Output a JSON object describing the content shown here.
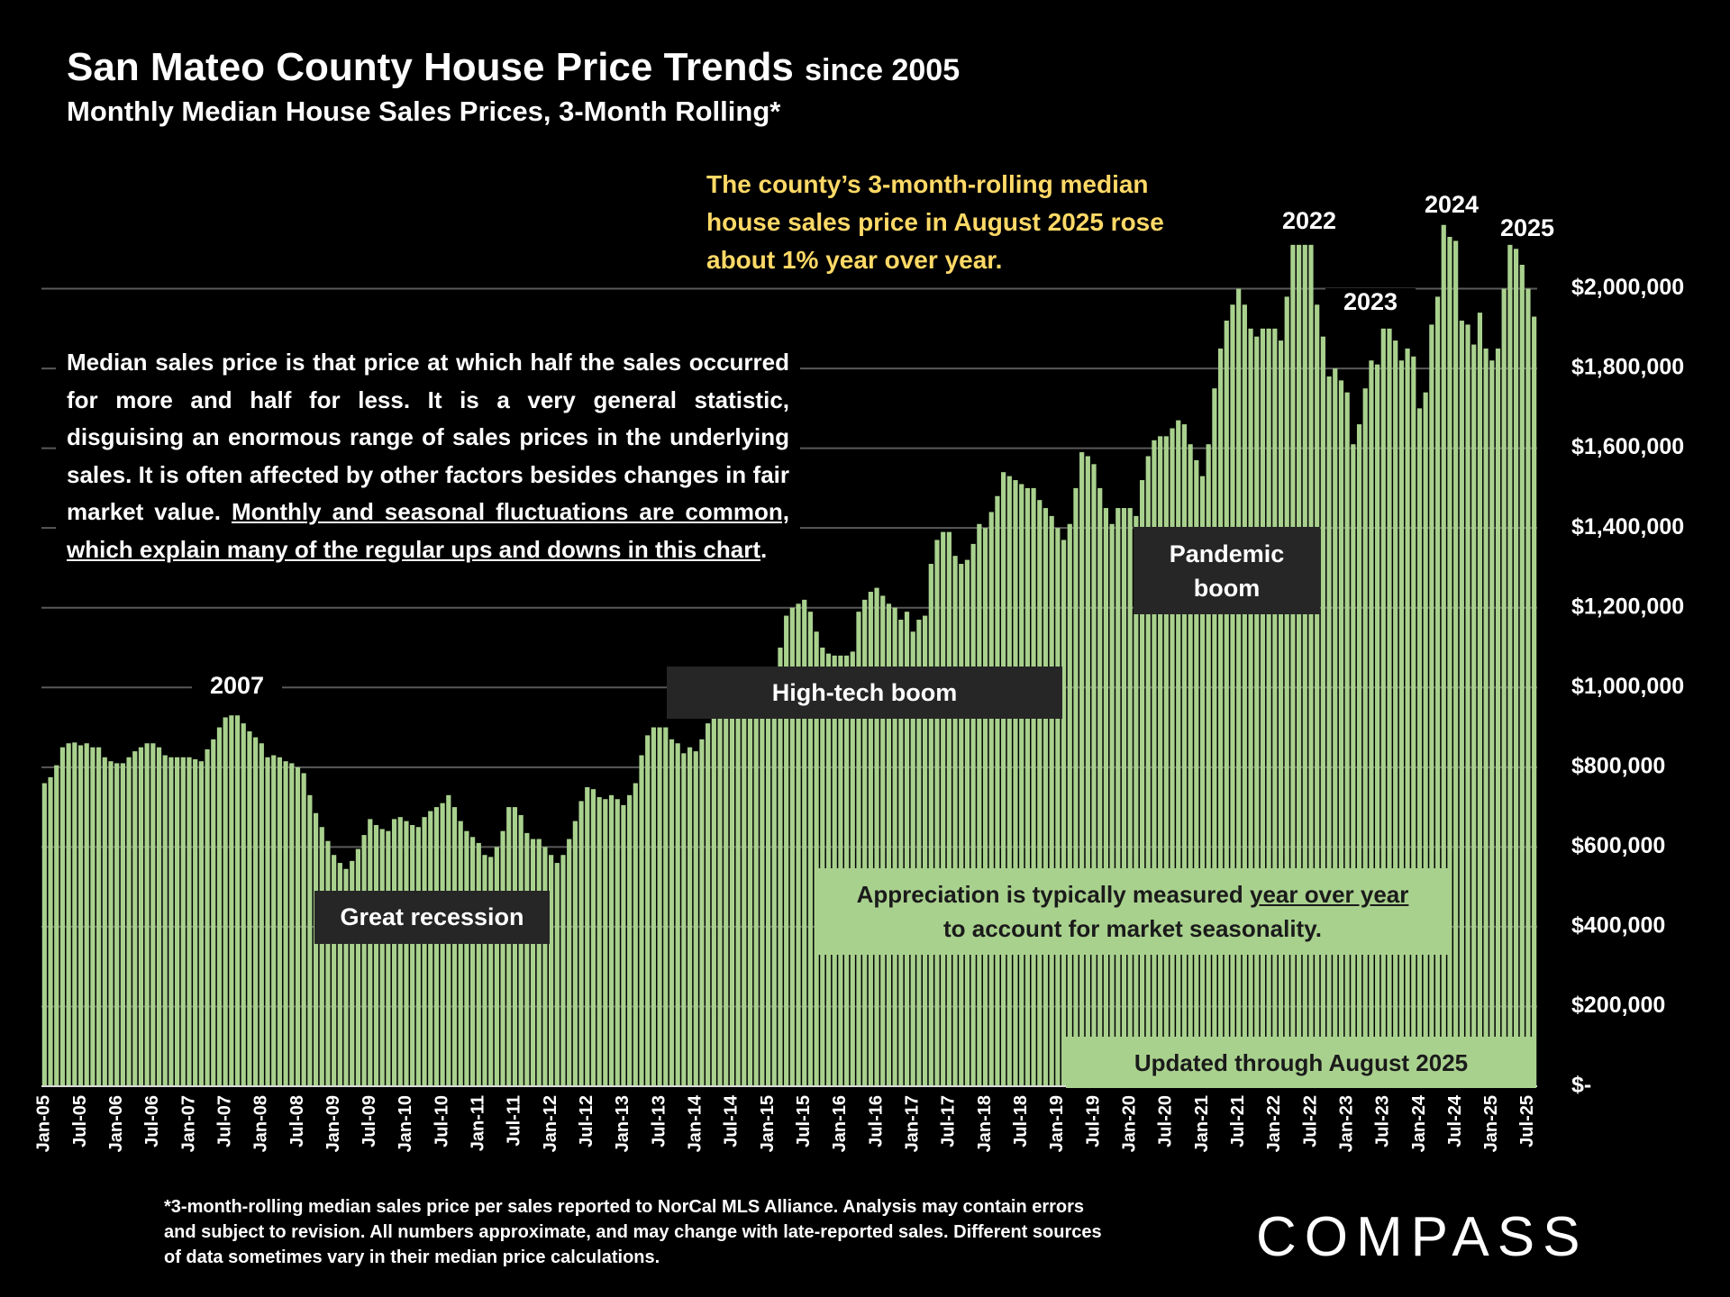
{
  "chart_data": {
    "type": "bar",
    "title": "San Mateo County House Price Trends",
    "title_note": "since 2005",
    "subtitle": "Monthly Median House Sales Prices, 3-Month Rolling*",
    "callout": "The county’s 3-month-rolling median house sales price in August 2025 rose about 1% year over year.",
    "explainer": {
      "text": "Median sales price is that price at which half the sales occurred for more and half for less. It is a very general statistic, disguising an enormous range of sales prices in the underlying sales. It is often affected by other factors besides changes in fair market value.",
      "underlined": "Monthly and seasonal fluctuations are common, which explain many of the regular ups and downs in this chart",
      "end": "."
    },
    "annotations": [
      "2007",
      "2022",
      "2023",
      "2024",
      "2025",
      "Great recession",
      "High-tech boom",
      "Pandemic boom"
    ],
    "seasonality_note": {
      "before": "Appreciation is typically measured",
      "underlined": "year over year",
      "after": "to account for market seasonality."
    },
    "update_note": "Updated through August 2025",
    "footnote": "*3-month-rolling median sales price per sales reported to NorCal MLS Alliance. Analysis may contain errors and subject to revision. All numbers approximate, and may change with late-reported sales. Different sources of data sometimes vary in their median price calculations.",
    "logo": "COMPASS",
    "color": "#a9d18e",
    "grid": true,
    "ylim": [
      0,
      2200000
    ],
    "yticks": [
      {
        "value": 0,
        "label": "$-"
      },
      {
        "value": 200000,
        "label": "$200,000"
      },
      {
        "value": 400000,
        "label": "$400,000"
      },
      {
        "value": 600000,
        "label": "$600,000"
      },
      {
        "value": 800000,
        "label": "$800,000"
      },
      {
        "value": 1000000,
        "label": "$1,000,000"
      },
      {
        "value": 1200000,
        "label": "$1,200,000"
      },
      {
        "value": 1400000,
        "label": "$1,400,000"
      },
      {
        "value": 1600000,
        "label": "$1,600,000"
      },
      {
        "value": 1800000,
        "label": "$1,800,000"
      },
      {
        "value": 2000000,
        "label": "$2,000,000"
      }
    ],
    "categories": [
      "Jan-05",
      null,
      null,
      null,
      null,
      null,
      "Jul-05",
      null,
      null,
      null,
      null,
      null,
      "Jan-06",
      null,
      null,
      null,
      null,
      null,
      "Jul-06",
      null,
      null,
      null,
      null,
      null,
      "Jan-07",
      null,
      null,
      null,
      null,
      null,
      "Jul-07",
      null,
      null,
      null,
      null,
      null,
      "Jan-08",
      null,
      null,
      null,
      null,
      null,
      "Jul-08",
      null,
      null,
      null,
      null,
      null,
      "Jan-09",
      null,
      null,
      null,
      null,
      null,
      "Jul-09",
      null,
      null,
      null,
      null,
      null,
      "Jan-10",
      null,
      null,
      null,
      null,
      null,
      "Jul-10",
      null,
      null,
      null,
      null,
      null,
      "Jan-11",
      null,
      null,
      null,
      null,
      null,
      "Jul-11",
      null,
      null,
      null,
      null,
      null,
      "Jan-12",
      null,
      null,
      null,
      null,
      null,
      "Jul-12",
      null,
      null,
      null,
      null,
      null,
      "Jan-13",
      null,
      null,
      null,
      null,
      null,
      "Jul-13",
      null,
      null,
      null,
      null,
      null,
      "Jan-14",
      null,
      null,
      null,
      null,
      null,
      "Jul-14",
      null,
      null,
      null,
      null,
      null,
      "Jan-15",
      null,
      null,
      null,
      null,
      null,
      "Jul-15",
      null,
      null,
      null,
      null,
      null,
      "Jan-16",
      null,
      null,
      null,
      null,
      null,
      "Jul-16",
      null,
      null,
      null,
      null,
      null,
      "Jan-17",
      null,
      null,
      null,
      null,
      null,
      "Jul-17",
      null,
      null,
      null,
      null,
      null,
      "Jan-18",
      null,
      null,
      null,
      null,
      null,
      "Jul-18",
      null,
      null,
      null,
      null,
      null,
      "Jan-19",
      null,
      null,
      null,
      null,
      null,
      "Jul-19",
      null,
      null,
      null,
      null,
      null,
      "Jan-20",
      null,
      null,
      null,
      null,
      null,
      "Jul-20",
      null,
      null,
      null,
      null,
      null,
      "Jan-21",
      null,
      null,
      null,
      null,
      null,
      "Jul-21",
      null,
      null,
      null,
      null,
      null,
      "Jan-22",
      null,
      null,
      null,
      null,
      null,
      "Jul-22",
      null,
      null,
      null,
      null,
      null,
      "Jan-23",
      null,
      null,
      null,
      null,
      null,
      "Jul-23",
      null,
      null,
      null,
      null,
      null,
      "Jan-24",
      null,
      null,
      null,
      null,
      null,
      "Jul-24",
      null,
      null,
      null,
      null,
      null,
      "Jan-25",
      null,
      null,
      null,
      null,
      null,
      "Jul-25",
      null
    ],
    "values": [
      760000,
      775000,
      805000,
      850000,
      860000,
      862000,
      855000,
      860000,
      850000,
      850000,
      825000,
      815000,
      810000,
      810000,
      825000,
      840000,
      850000,
      860000,
      860000,
      850000,
      830000,
      825000,
      825000,
      825000,
      825000,
      820000,
      815000,
      845000,
      870000,
      900000,
      925000,
      930000,
      930000,
      910000,
      890000,
      875000,
      860000,
      825000,
      830000,
      825000,
      815000,
      810000,
      800000,
      785000,
      730000,
      685000,
      650000,
      615000,
      580000,
      560000,
      545000,
      565000,
      595000,
      630000,
      670000,
      655000,
      645000,
      640000,
      670000,
      675000,
      665000,
      655000,
      650000,
      675000,
      690000,
      700000,
      710000,
      730000,
      700000,
      665000,
      640000,
      625000,
      610000,
      580000,
      575000,
      600000,
      640000,
      700000,
      700000,
      680000,
      635000,
      620000,
      620000,
      600000,
      580000,
      560000,
      580000,
      620000,
      665000,
      715000,
      750000,
      745000,
      725000,
      720000,
      730000,
      720000,
      705000,
      730000,
      760000,
      830000,
      880000,
      900000,
      900000,
      900000,
      870000,
      860000,
      835000,
      850000,
      840000,
      870000,
      910000,
      950000,
      980000,
      990000,
      1000000,
      980000,
      960000,
      945000,
      930000,
      930000,
      1000000,
      1050000,
      1100000,
      1180000,
      1200000,
      1210000,
      1220000,
      1190000,
      1140000,
      1100000,
      1085000,
      1080000,
      1080000,
      1080000,
      1090000,
      1190000,
      1220000,
      1240000,
      1250000,
      1230000,
      1210000,
      1200000,
      1170000,
      1190000,
      1140000,
      1170000,
      1180000,
      1310000,
      1370000,
      1390000,
      1390000,
      1330000,
      1310000,
      1320000,
      1360000,
      1410000,
      1400000,
      1440000,
      1480000,
      1540000,
      1530000,
      1520000,
      1510000,
      1500000,
      1500000,
      1470000,
      1450000,
      1430000,
      1400000,
      1370000,
      1410000,
      1500000,
      1590000,
      1580000,
      1560000,
      1500000,
      1450000,
      1410000,
      1450000,
      1450000,
      1450000,
      1430000,
      1520000,
      1580000,
      1620000,
      1630000,
      1630000,
      1650000,
      1670000,
      1660000,
      1610000,
      1570000,
      1530000,
      1610000,
      1750000,
      1850000,
      1920000,
      1960000,
      2000000,
      1960000,
      1900000,
      1880000,
      1900000,
      1900000,
      1900000,
      1870000,
      1980000,
      2110000,
      2110000,
      2110000,
      2110000,
      1960000,
      1880000,
      1780000,
      1800000,
      1770000,
      1740000,
      1610000,
      1660000,
      1750000,
      1820000,
      1810000,
      1900000,
      1900000,
      1870000,
      1820000,
      1850000,
      1830000,
      1700000,
      1740000,
      1910000,
      1980000,
      2160000,
      2130000,
      2120000,
      1920000,
      1910000,
      1860000,
      1940000,
      1850000,
      1820000,
      1850000,
      2000000,
      2110000,
      2100000,
      2060000,
      2000000,
      1930000
    ]
  }
}
